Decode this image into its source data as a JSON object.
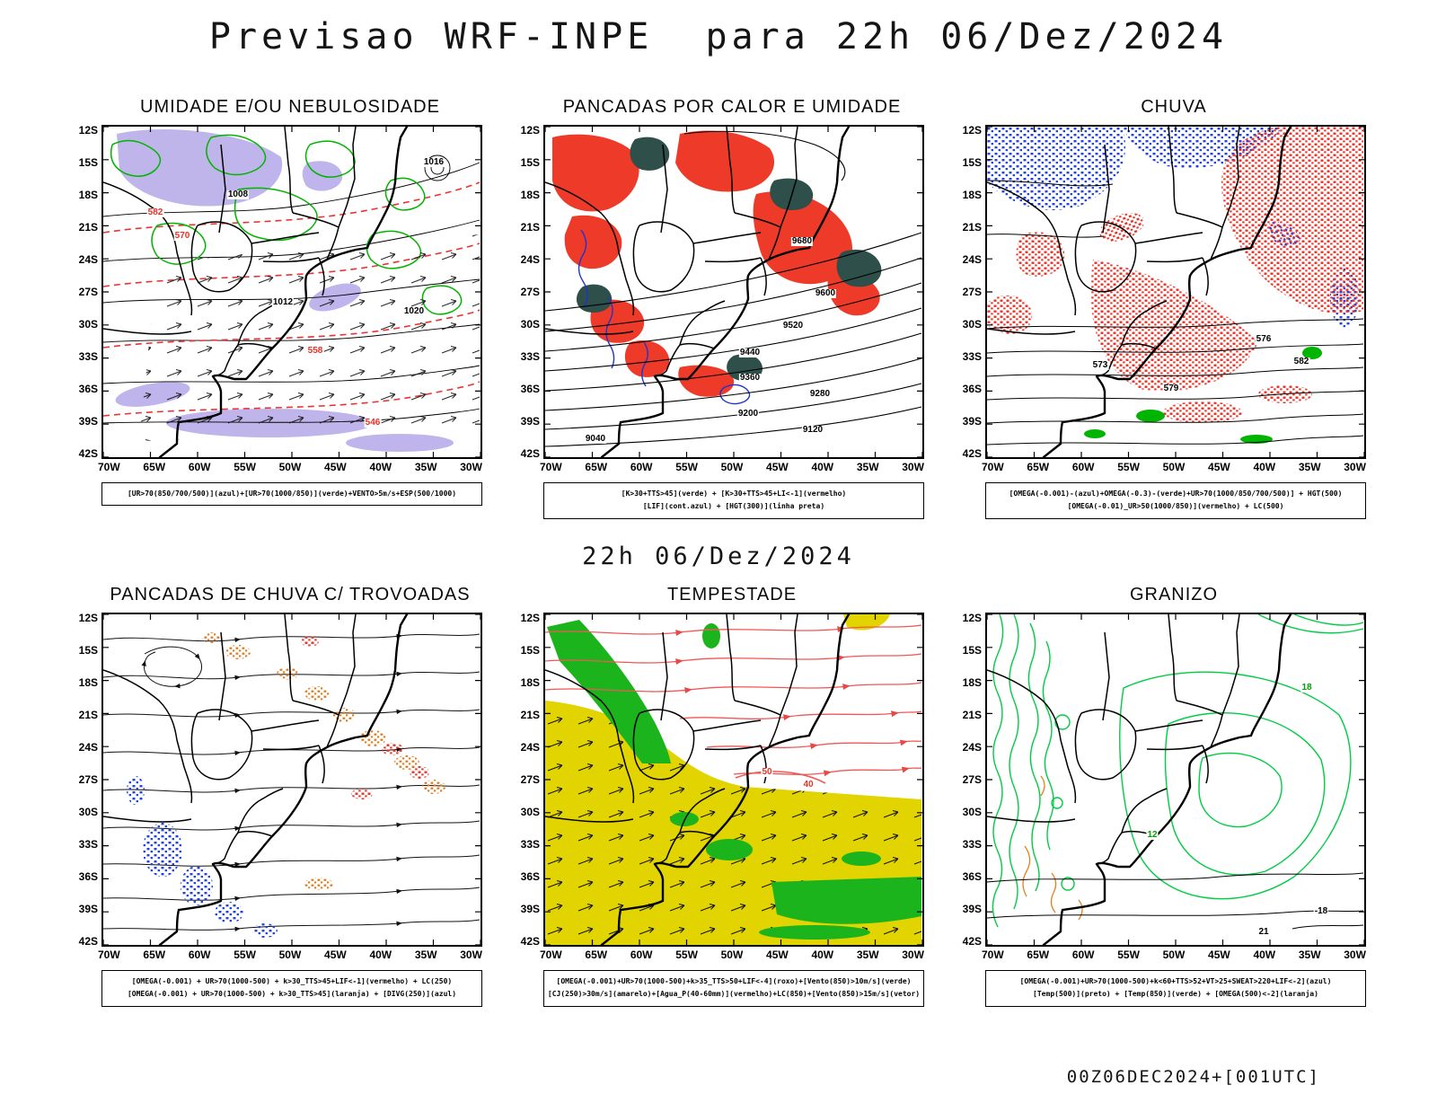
{
  "title": "Previsao WRF-INPE  para 22h 06/Dez/2024",
  "mid_date": "22h 06/Dez/2024",
  "footer": "00Z06DEC2024+[001UTC]",
  "axes": {
    "lat": [
      "12S",
      "15S",
      "18S",
      "21S",
      "24S",
      "27S",
      "30S",
      "33S",
      "36S",
      "39S",
      "42S"
    ],
    "lon": [
      "70W",
      "65W",
      "60W",
      "55W",
      "50W",
      "45W",
      "40W",
      "35W",
      "30W"
    ]
  },
  "colors": {
    "humidity_shade": "#b4a8e8",
    "green_contour": "#00b400",
    "red": "#e63226",
    "blue": "#2244dd",
    "orange": "#e07818",
    "dark_green_patch": "#2e4f4a",
    "yellow": "#e2d400",
    "storm_green": "#1cb41c"
  },
  "panels": [
    {
      "title": "UMIDADE E/OU NEBULOSIDADE",
      "caption1": "[UR>70(850/700/500)](azul)+[UR>70(1000/850)](verde)+VENTO>5m/s+ESP(500/1000)",
      "caption2": "",
      "labels": [
        "1016",
        "1008",
        "1012",
        "1020",
        "570",
        "558",
        "546",
        "582"
      ]
    },
    {
      "title": "PANCADAS POR CALOR E UMIDADE",
      "caption1": "[K>30+TTS>45](verde) + [K>30+TTS>45+LI<-1](vermelho)",
      "caption2": "[LIF](cont.azul) + [HGT(300)](linha preta)",
      "labels": [
        "9680",
        "9600",
        "9520",
        "9440",
        "9360",
        "9280",
        "9200",
        "9120",
        "9040"
      ]
    },
    {
      "title": "CHUVA",
      "caption1": "[OMEGA(-0.001)-(azul)+OMEGA(-0.3)-(verde)+UR>70(1000/850/700/500)] + HGT(500)",
      "caption2": "[OMEGA(-0.01)_UR>50(1000/850)](vermelho) + LC(500)",
      "labels": [
        "582",
        "576",
        "573",
        "579"
      ]
    },
    {
      "title": "PANCADAS DE CHUVA C/ TROVOADAS",
      "caption1": "[OMEGA(-0.001) + UR>70(1000-500) + k>30_TTS>45+LIF<-1](vermelho) + LC(250)",
      "caption2": "[OMEGA(-0.001) + UR>70(1000-500) + k>30_TTS>45](laranja) + [DIVG(250)](azul)",
      "labels": []
    },
    {
      "title": "TEMPESTADE",
      "caption1": "[OMEGA(-0.001)+UR>70(1000-500)+k>35_TTS>50+LIF<-4](roxo)+[Vento(850)>10m/s](verde)",
      "caption2": "[CJ(250)>30m/s](amarelo)+[Agua_P(40-60mm)](vermelho)+LC(850)+[Vento(850)>15m/s](vetor)",
      "labels": [
        "50",
        "40"
      ]
    },
    {
      "title": "GRANIZO",
      "caption1": "[OMEGA(-0.001)+UR>70(1000-500)+k<60+TTS>52+VT>25+SWEAT>220+LIF<-2](azul)",
      "caption2": "[Temp(500)](preto) + [Temp(850)](verde) + [OMEGA(500)<-2](laranja)",
      "labels": [
        "18",
        "12",
        "-18",
        "21"
      ]
    }
  ]
}
